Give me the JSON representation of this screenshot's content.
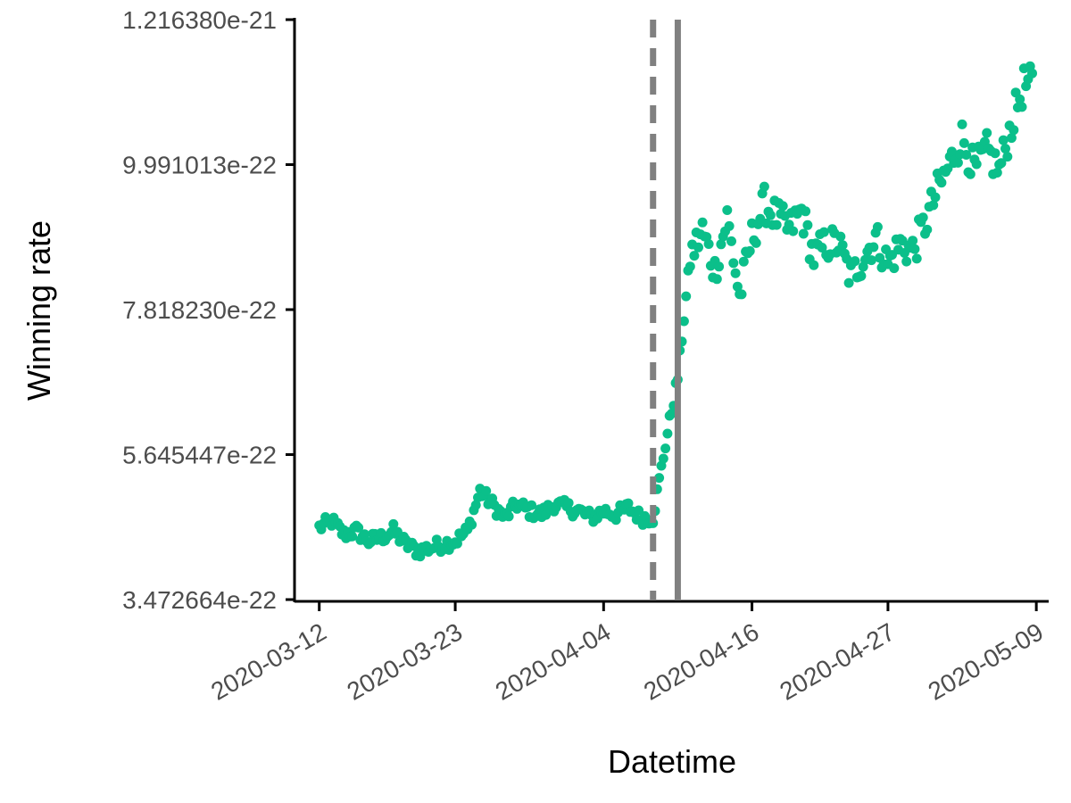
{
  "chart_data": {
    "type": "scatter",
    "xlabel": "Datetime",
    "ylabel": "Winning rate",
    "x_ticks": [
      "2020-03-12",
      "2020-03-23",
      "2020-04-04",
      "2020-04-16",
      "2020-04-27",
      "2020-05-09"
    ],
    "y_ticks": [
      "3.472664e-22",
      "5.645447e-22",
      "7.818230e-22",
      "9.991013e-22",
      "1.216380e-21"
    ],
    "xlim": [
      "2020-03-10",
      "2020-05-10"
    ],
    "ylim": [
      3.472664e-22,
      1.21638e-21
    ],
    "grid": false,
    "legend": "none",
    "point_color": "#0bbf8a",
    "reference_lines": [
      {
        "x": "2020-04-08",
        "style": "dashed",
        "color": "#808080"
      },
      {
        "x": "2020-04-10",
        "style": "solid",
        "color": "#808080"
      }
    ],
    "series": [
      {
        "x": [
          "2020-03-12",
          "2020-03-13",
          "2020-03-14",
          "2020-03-15",
          "2020-03-16",
          "2020-03-17",
          "2020-03-18",
          "2020-03-19",
          "2020-03-20",
          "2020-03-21",
          "2020-03-22",
          "2020-03-23",
          "2020-03-24",
          "2020-03-25",
          "2020-03-26",
          "2020-03-27",
          "2020-03-28",
          "2020-03-29",
          "2020-03-30",
          "2020-03-31",
          "2020-04-01",
          "2020-04-02",
          "2020-04-03",
          "2020-04-04",
          "2020-04-05",
          "2020-04-06",
          "2020-04-07",
          "2020-04-08",
          "2020-04-09",
          "2020-04-10",
          "2020-04-11",
          "2020-04-12",
          "2020-04-13",
          "2020-04-14",
          "2020-04-15",
          "2020-04-16",
          "2020-04-17",
          "2020-04-18",
          "2020-04-19",
          "2020-04-20",
          "2020-04-21",
          "2020-04-22",
          "2020-04-23",
          "2020-04-24",
          "2020-04-25",
          "2020-04-26",
          "2020-04-27",
          "2020-04-28",
          "2020-04-29",
          "2020-04-30",
          "2020-05-01",
          "2020-05-02",
          "2020-05-03",
          "2020-05-04",
          "2020-05-05",
          "2020-05-06",
          "2020-05-07",
          "2020-05-08"
        ],
        "y": [
          4.55e-22,
          4.65e-22,
          4.45e-22,
          4.5e-22,
          4.35e-22,
          4.4e-22,
          4.5e-22,
          4.3e-22,
          4.2e-22,
          4.25e-22,
          4.3e-22,
          4.35e-22,
          4.5e-22,
          5.1e-22,
          4.9e-22,
          4.7e-22,
          4.9e-22,
          4.8e-22,
          4.75e-22,
          4.9e-22,
          4.85e-22,
          4.8e-22,
          4.7e-22,
          4.8e-22,
          4.75e-22,
          4.85e-22,
          4.7e-22,
          4.7e-22,
          5.8e-22,
          6.8e-22,
          8.6e-22,
          9e-22,
          8.4e-22,
          9.2e-22,
          8e-22,
          8.9e-22,
          9.4e-22,
          9.2e-22,
          9e-22,
          9.3e-22,
          8.6e-22,
          8.8e-22,
          8.8e-22,
          8.3e-22,
          8.6e-22,
          8.9e-22,
          8.5e-22,
          8.8e-22,
          8.7e-22,
          9.1e-22,
          9.6e-22,
          1e-21,
          1.04e-21,
          9.9e-22,
          1.02e-21,
          9.9e-22,
          1.06e-21,
          1.12e-21
        ]
      }
    ]
  }
}
